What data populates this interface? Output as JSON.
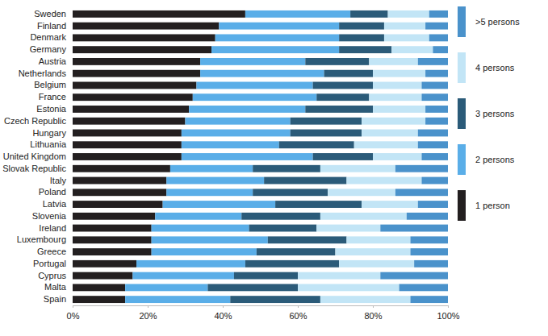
{
  "chart_data": {
    "type": "bar",
    "orientation": "horizontal",
    "stacked": true,
    "legend": "right",
    "categories": [
      "Sweden",
      "Finland",
      "Denmark",
      "Germany",
      "Austria",
      "Netherlands",
      "Belgium",
      "France",
      "Estonia",
      "Czech Republic",
      "Hungary",
      "Lithuania",
      "United Kingdom",
      "Slovak Republic",
      "Italy",
      "Poland",
      "Latvia",
      "Slovenia",
      "Ireland",
      "Luxembourg",
      "Greece",
      "Portugal",
      "Cyprus",
      "Malta",
      "Spain"
    ],
    "series": [
      {
        "name": "1 person",
        "color": "#231f20",
        "values": [
          46,
          39,
          38,
          37,
          34,
          34,
          33,
          32,
          31,
          30,
          29,
          29,
          29,
          26,
          25,
          25,
          24,
          22,
          21,
          21,
          21,
          17,
          16,
          14,
          14
        ]
      },
      {
        "name": "2 persons",
        "color": "#5aaee8",
        "values": [
          28,
          32,
          33,
          34,
          28,
          33,
          31,
          33,
          31,
          28,
          29,
          26,
          35,
          22,
          26,
          23,
          30,
          23,
          26,
          31,
          28,
          29,
          27,
          22,
          28
        ]
      },
      {
        "name": "3 persons",
        "color": "#2b5b79",
        "values": [
          10,
          12,
          12,
          14,
          17,
          13,
          16,
          14,
          18,
          19,
          19,
          20,
          16,
          18,
          22,
          20,
          23,
          21,
          18,
          21,
          21,
          25,
          17,
          24,
          24
        ]
      },
      {
        "name": "4 persons",
        "color": "#c2e5f6",
        "values": [
          11,
          11,
          12,
          11,
          13,
          14,
          13,
          14,
          14,
          17,
          15,
          17,
          13,
          20,
          20,
          18,
          15,
          23,
          17,
          17,
          20,
          20,
          22,
          27,
          24
        ]
      },
      {
        "name": ">5 persons",
        "color": "#4a92cb",
        "values": [
          5,
          6,
          5,
          4,
          8,
          6,
          7,
          7,
          6,
          6,
          8,
          8,
          7,
          14,
          7,
          14,
          8,
          11,
          18,
          10,
          10,
          9,
          18,
          13,
          10
        ]
      }
    ],
    "xlim": [
      0,
      100
    ],
    "xticks": [
      {
        "value": 0,
        "label": "0%"
      },
      {
        "value": 20,
        "label": "20%"
      },
      {
        "value": 40,
        "label": "40%"
      },
      {
        "value": 60,
        "label": "60%"
      },
      {
        "value": 80,
        "label": "80%"
      },
      {
        "value": 100,
        "label": "100%"
      }
    ]
  }
}
